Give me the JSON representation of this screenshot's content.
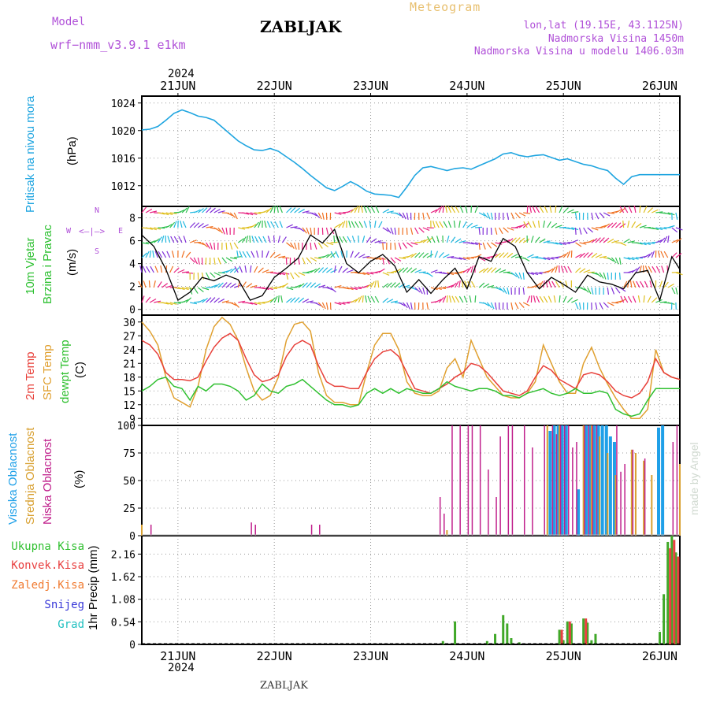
{
  "header": {
    "model_label": "Model",
    "model_name": "wrf−nmm_v3.9.1  e1km",
    "location": "ZABLJAK",
    "product": "Meteogram",
    "lonlat": "lon,lat (19.15E, 43.1125N)",
    "elevation": "Nadmorska Visina 1450m",
    "model_elevation": "Nadmorska Visina u modelu 1406.03m",
    "year_top": "2024",
    "year_bottom": "2024",
    "footer_location": "ZABLJAK",
    "credit": "made by Angel"
  },
  "days": [
    "21JUN",
    "22JUN",
    "23JUN",
    "24JUN",
    "25JUN",
    "26JUN"
  ],
  "panel_labels": {
    "pressure": [
      "Pritisak na nivou mora",
      "(hPa)"
    ],
    "wind": [
      "10m Vjetar",
      "Brzina i Pravac",
      "(m/s)"
    ],
    "wind_compass": [
      "N",
      "W",
      "E",
      "S"
    ],
    "temp": [
      "2m Temp",
      "SFC Temp",
      "dewpt Temp",
      "(C)"
    ],
    "cloud": [
      "Visoka Oblacnost",
      "Srednja Oblacnost",
      "Niska Oblacnost",
      "(%)"
    ],
    "precip_legend": [
      "Ukupna Kisa",
      "Konvek.Kisa",
      "Zaledj.Kisa",
      "Snijeg",
      "Grad"
    ],
    "precip_axis": "1hr Precip (mm)"
  },
  "colors": {
    "pressure": "#1fa5e0",
    "t2m": "#e8403a",
    "tsfc": "#e0a030",
    "dewpt": "#30c030",
    "cloud_high": "#1fa0e8",
    "cloud_mid": "#d8a030",
    "cloud_low": "#c0208c",
    "precip_total": "#40a828",
    "precip_conv": "#e84040",
    "precip_frozen": "#f07a30",
    "snow": "#3838d8",
    "hail": "#20c0c0",
    "model": "#b050d8"
  },
  "chart_data": [
    {
      "type": "line",
      "title": "Pritisak na nivou mora",
      "ylabel": "(hPa)",
      "ylim": [
        1009,
        1025
      ],
      "yticks": [
        1012,
        1016,
        1020,
        1024
      ],
      "x_hours": [
        0,
        2,
        4,
        6,
        8,
        10,
        12,
        14,
        16,
        18,
        20,
        22,
        24,
        26,
        28,
        30,
        32,
        34,
        36,
        38,
        40,
        42,
        44,
        46,
        48,
        50,
        52,
        54,
        56,
        58,
        60,
        62,
        64,
        66,
        68,
        70,
        72,
        74,
        76,
        78,
        80,
        82,
        84,
        86,
        88,
        90,
        92,
        94,
        96,
        98,
        100,
        102,
        104,
        106,
        108,
        110,
        112,
        114,
        116,
        118,
        120,
        122,
        124,
        126,
        128,
        130,
        132,
        134
      ],
      "series": [
        {
          "values": [
            1020.1,
            1020.2,
            1020.6,
            1021.5,
            1022.5,
            1023.0,
            1022.6,
            1022.1,
            1021.9,
            1021.5,
            1020.5,
            1019.5,
            1018.5,
            1017.8,
            1017.2,
            1017.1,
            1017.4,
            1017.0,
            1016.2,
            1015.4,
            1014.5,
            1013.5,
            1012.6,
            1011.7,
            1011.3,
            1011.9,
            1012.6,
            1012.0,
            1011.2,
            1010.8,
            1010.7,
            1010.6,
            1010.3,
            1011.8,
            1013.5,
            1014.6,
            1014.8,
            1014.5,
            1014.2,
            1014.5,
            1014.6,
            1014.4,
            1014.9,
            1015.4,
            1015.9,
            1016.6,
            1016.8,
            1016.4,
            1016.2,
            1016.4,
            1016.5,
            1016.1,
            1015.7,
            1015.9,
            1015.5,
            1015.1,
            1014.9,
            1014.5,
            1014.2,
            1013.1,
            1012.2,
            1013.3,
            1013.6,
            1013.6,
            1013.6,
            1013.6,
            1013.6,
            1013.6
          ]
        }
      ]
    },
    {
      "type": "line",
      "title": "10m Vjetar Brzina i Pravac",
      "ylabel": "(m/s)",
      "ylim": [
        -0.5,
        9
      ],
      "yticks": [
        0,
        2,
        4,
        6,
        8
      ],
      "x_hours": [
        0,
        3,
        6,
        9,
        12,
        15,
        18,
        21,
        24,
        27,
        30,
        33,
        36,
        39,
        42,
        45,
        48,
        51,
        54,
        57,
        60,
        63,
        66,
        69,
        72,
        75,
        78,
        81,
        84,
        87,
        90,
        93,
        96,
        99,
        102,
        105,
        108,
        111,
        114,
        117,
        120,
        123,
        126,
        129,
        132,
        134
      ],
      "series": [
        {
          "values": [
            6.5,
            5.5,
            3.5,
            0.8,
            1.5,
            2.8,
            2.5,
            3.0,
            2.6,
            0.8,
            1.2,
            2.8,
            3.6,
            4.5,
            6.5,
            5.8,
            7.0,
            4.0,
            3.2,
            4.2,
            4.8,
            3.8,
            1.5,
            2.6,
            1.4,
            2.6,
            3.6,
            1.8,
            4.6,
            4.2,
            6.2,
            5.5,
            3.2,
            1.8,
            2.8,
            2.2,
            1.5,
            3.0,
            2.4,
            2.2,
            1.8,
            3.2,
            3.4,
            0.8,
            4.6,
            3.5
          ]
        }
      ]
    },
    {
      "type": "line",
      "title": "2m Temp / SFC Temp / dewpt Temp",
      "ylabel": "(C)",
      "ylim": [
        7.5,
        31.5
      ],
      "yticks": [
        9,
        12,
        15,
        18,
        21,
        24,
        27,
        30
      ],
      "x_hours": [
        0,
        2,
        4,
        6,
        8,
        10,
        12,
        14,
        16,
        18,
        20,
        22,
        24,
        26,
        28,
        30,
        32,
        34,
        36,
        38,
        40,
        42,
        44,
        46,
        48,
        50,
        52,
        54,
        56,
        58,
        60,
        62,
        64,
        66,
        68,
        70,
        72,
        74,
        76,
        78,
        80,
        82,
        84,
        86,
        88,
        90,
        92,
        94,
        96,
        98,
        100,
        102,
        104,
        106,
        108,
        110,
        112,
        114,
        116,
        118,
        120,
        122,
        124,
        126,
        128,
        130,
        132,
        134
      ],
      "series": [
        {
          "name": "2m Temp",
          "values": [
            26,
            25,
            23,
            19,
            17.5,
            17.5,
            17.2,
            18,
            21.5,
            24.5,
            26.5,
            27.5,
            26,
            22,
            18.5,
            17,
            17.5,
            18.5,
            22.5,
            25,
            26,
            25,
            20.5,
            17,
            16,
            16,
            15.5,
            15.5,
            19,
            22,
            23.5,
            24,
            22.5,
            19,
            15.5,
            15,
            14.5,
            15.5,
            16.5,
            18,
            19,
            21,
            20.5,
            19,
            17,
            15,
            14.5,
            14,
            15,
            18,
            20.5,
            19.5,
            17.5,
            16.5,
            15.5,
            18.5,
            19,
            18.5,
            17,
            15,
            14,
            13.5,
            14.5,
            17,
            22,
            19,
            18,
            17.5
          ]
        },
        {
          "name": "SFC Temp",
          "values": [
            30,
            28,
            25,
            18,
            13.5,
            12.5,
            11.5,
            16,
            24,
            29,
            31,
            29.5,
            26,
            20,
            15,
            13,
            14,
            18,
            26,
            29.5,
            30,
            28,
            19,
            14,
            12.5,
            12.5,
            12,
            12,
            19,
            25,
            27.5,
            27.5,
            24,
            17,
            14.5,
            14,
            14,
            15,
            20,
            22,
            18,
            26,
            22,
            18,
            16,
            14,
            13.5,
            13.5,
            14.5,
            17,
            25,
            21,
            17,
            14.5,
            14.5,
            21,
            24.5,
            20,
            16.5,
            13.5,
            11,
            9,
            9,
            11,
            24,
            19,
            18,
            17.5
          ]
        },
        {
          "name": "dewpt Temp",
          "values": [
            15,
            16,
            17.5,
            18,
            16,
            15.5,
            13,
            16,
            15,
            16.5,
            16.5,
            16,
            15,
            13,
            14,
            16.5,
            15,
            14.5,
            16,
            16.5,
            17.5,
            16,
            14.5,
            13,
            12,
            12,
            11.5,
            12,
            14.5,
            15.5,
            14.5,
            15.5,
            14.5,
            15.5,
            15,
            14.5,
            14.5,
            15.5,
            17,
            16,
            15.5,
            15,
            15.5,
            15.5,
            15,
            14,
            14,
            13.5,
            14.5,
            15,
            15.5,
            14.5,
            14,
            14.5,
            15.5,
            14.5,
            14.5,
            15,
            14.5,
            11,
            10,
            9.5,
            10,
            13,
            15.5,
            15.5,
            15.5,
            15.5
          ]
        }
      ]
    },
    {
      "type": "bar",
      "title": "Visoka / Srednja / Niska Oblacnost",
      "ylabel": "(%)",
      "ylim": [
        0,
        100
      ],
      "yticks": [
        0,
        25,
        50,
        75,
        100
      ],
      "series": [
        {
          "name": "Visoka Oblacnost",
          "points": [
            [
              102,
              95
            ],
            [
              103,
              100
            ],
            [
              104,
              100
            ],
            [
              105,
              100
            ],
            [
              106,
              100
            ],
            [
              109,
              42
            ],
            [
              111,
              100
            ],
            [
              112,
              100
            ],
            [
              113,
              100
            ],
            [
              114,
              100
            ],
            [
              115,
              100
            ],
            [
              116,
              100
            ],
            [
              117,
              90
            ],
            [
              118,
              85
            ],
            [
              129,
              98
            ],
            [
              130,
              100
            ]
          ]
        },
        {
          "name": "Srednja Oblacnost",
          "points": [
            [
              0,
              10
            ],
            [
              76,
              5
            ],
            [
              101,
              100
            ],
            [
              104,
              100
            ],
            [
              110,
              100
            ],
            [
              112,
              100
            ],
            [
              114,
              90
            ],
            [
              116,
              75
            ],
            [
              118,
              55
            ],
            [
              122,
              78
            ],
            [
              123,
              75
            ],
            [
              125,
              68
            ],
            [
              127,
              55
            ],
            [
              134,
              65
            ]
          ]
        },
        {
          "name": "Niska Oblacnost",
          "points": [
            [
              2,
              10
            ],
            [
              27,
              12
            ],
            [
              28,
              10
            ],
            [
              42,
              10
            ],
            [
              44,
              10
            ],
            [
              74,
              35
            ],
            [
              75,
              20
            ],
            [
              77,
              100
            ],
            [
              79,
              100
            ],
            [
              81,
              100
            ],
            [
              82,
              100
            ],
            [
              84,
              100
            ],
            [
              86,
              60
            ],
            [
              88,
              35
            ],
            [
              89,
              90
            ],
            [
              91,
              100
            ],
            [
              92,
              100
            ],
            [
              95,
              100
            ],
            [
              97,
              80
            ],
            [
              100,
              100
            ],
            [
              102,
              100
            ],
            [
              103,
              92
            ],
            [
              104,
              100
            ],
            [
              105,
              100
            ],
            [
              106,
              100
            ],
            [
              107,
              80
            ],
            [
              108,
              85
            ],
            [
              110,
              100
            ],
            [
              111,
              100
            ],
            [
              112,
              100
            ],
            [
              113,
              100
            ],
            [
              118,
              100
            ],
            [
              119,
              58
            ],
            [
              120,
              65
            ],
            [
              122,
              78
            ],
            [
              125,
              70
            ],
            [
              132,
              85
            ],
            [
              133,
              100
            ]
          ]
        }
      ]
    },
    {
      "type": "bar",
      "title": "1hr Precip",
      "ylabel": "1hr Precip (mm)",
      "ylim": [
        0,
        2.6
      ],
      "yticks": [
        0,
        0.54,
        1.08,
        1.62,
        2.16
      ],
      "series": [
        {
          "name": "Ukupna Kisa",
          "points": [
            [
              75,
              0.08
            ],
            [
              78,
              0.55
            ],
            [
              86,
              0.08
            ],
            [
              88,
              0.25
            ],
            [
              90,
              0.7
            ],
            [
              91,
              0.5
            ],
            [
              92,
              0.15
            ],
            [
              94,
              0.05
            ],
            [
              104,
              0.35
            ],
            [
              105,
              0.1
            ],
            [
              106,
              0.55
            ],
            [
              107,
              0.5
            ],
            [
              110,
              0.62
            ],
            [
              111,
              0.52
            ],
            [
              112,
              0.1
            ],
            [
              113,
              0.25
            ],
            [
              129,
              0.3
            ],
            [
              130,
              1.2
            ],
            [
              131,
              2.45
            ],
            [
              132,
              2.6
            ],
            [
              133,
              2.2
            ]
          ]
        },
        {
          "name": "Konvek.Kisa",
          "points": [
            [
              104,
              0.35
            ],
            [
              106,
              0.55
            ],
            [
              110,
              0.62
            ],
            [
              131,
              2.3
            ],
            [
              132,
              2.5
            ],
            [
              133,
              2.1
            ]
          ]
        }
      ]
    }
  ]
}
